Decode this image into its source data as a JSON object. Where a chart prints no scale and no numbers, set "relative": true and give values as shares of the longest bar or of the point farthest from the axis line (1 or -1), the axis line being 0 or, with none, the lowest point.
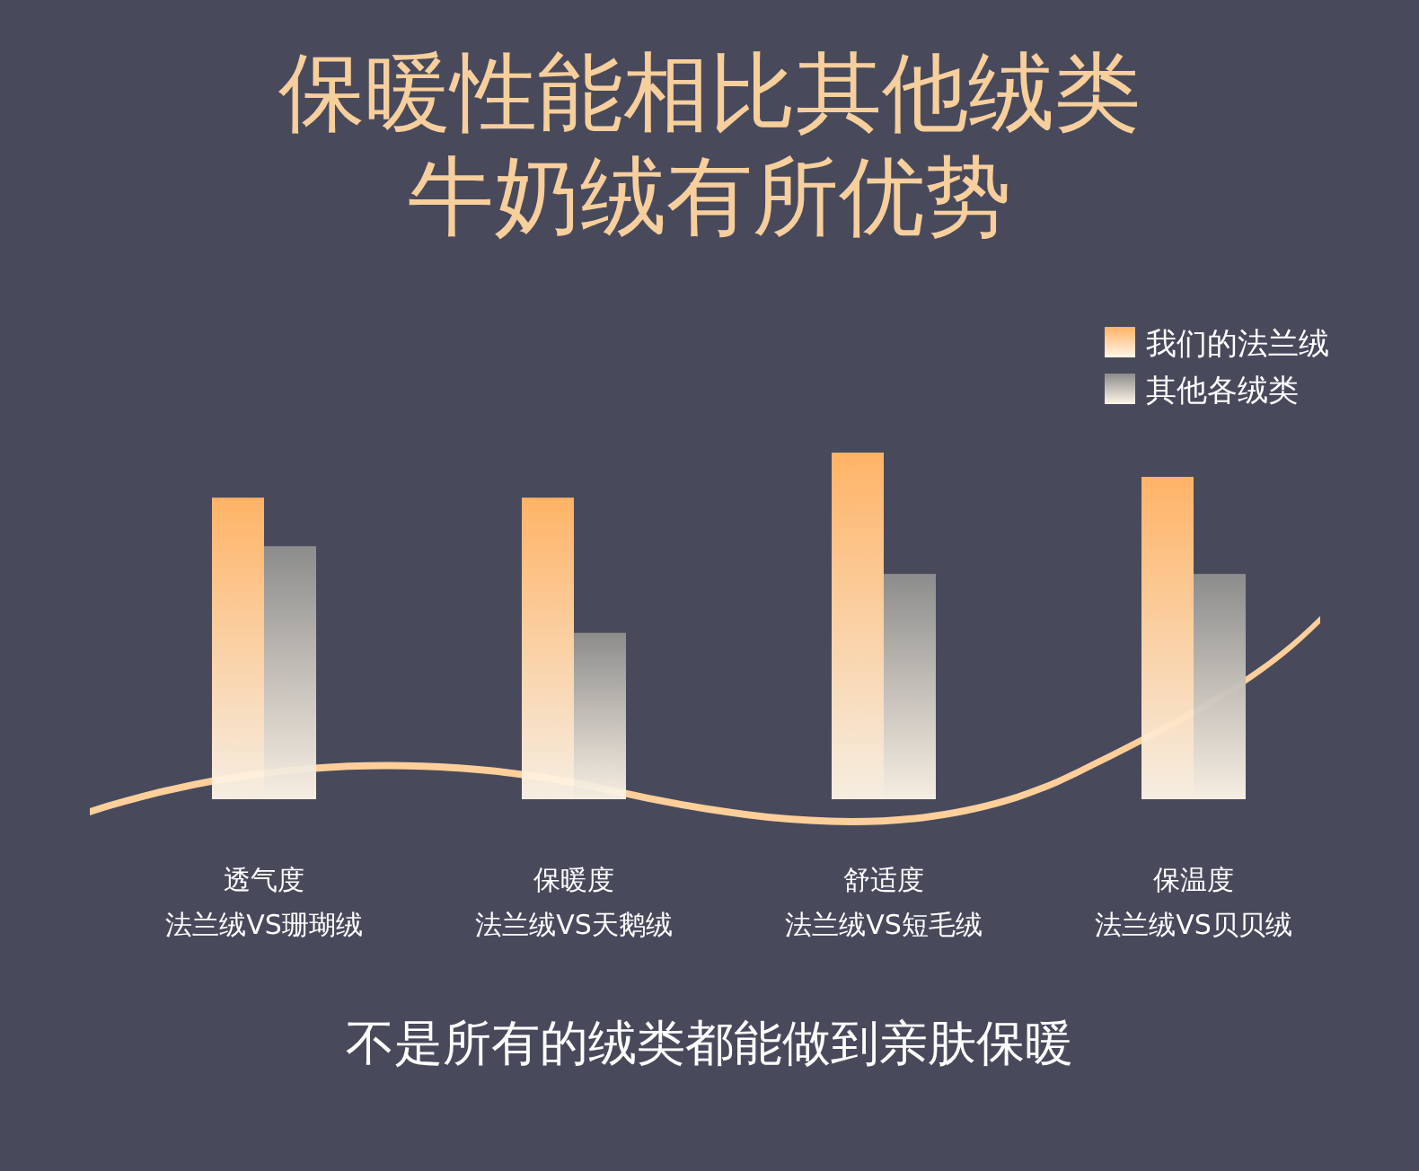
{
  "chart_data": {
    "type": "bar",
    "title": "保暖性能相比其他绒类",
    "subtitle": "牛奶绒有所优势",
    "relative": true,
    "legend": "top right",
    "categories": [
      "透气度法兰绒VS珊瑚绒",
      "保暖度法兰绒VS天鹅绒",
      "舒适度法兰绒VS短毛绒",
      "保温度法兰绒VS贝贝绒"
    ],
    "series": [
      {
        "name": "我们的法兰绒",
        "color": "#ffb366",
        "values": [
          0.87,
          0.87,
          1,
          0.93
        ]
      },
      {
        "name": "其他各绒类",
        "color": "#8c8c8c",
        "values": [
          0.73,
          0.48,
          0.65,
          0.65
        ]
      }
    ],
    "annotations": [
      "不是所有的绒类都能做到亲肤保暖"
    ]
  }
}
